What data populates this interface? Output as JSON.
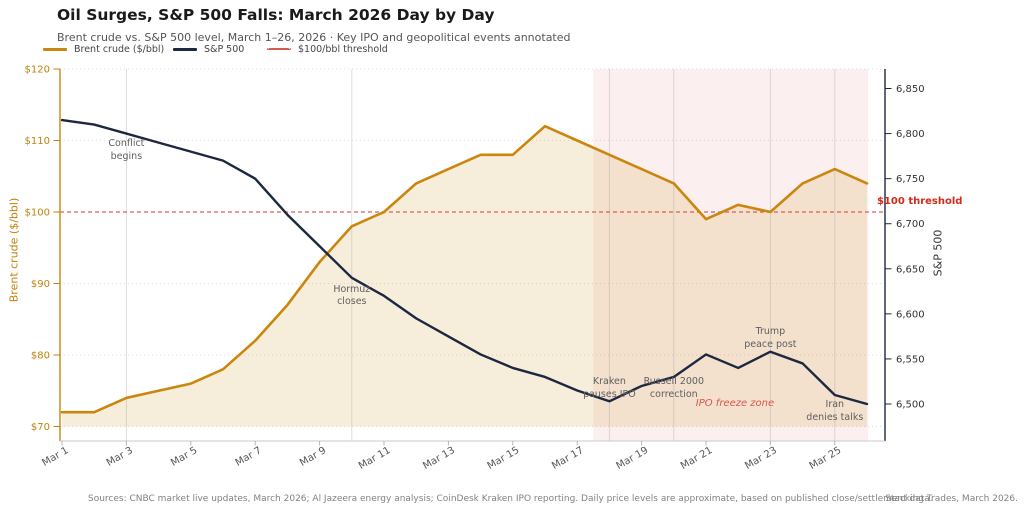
{
  "header": {
    "title": "Oil Surges, S&P 500 Falls: March 2026 Day by Day",
    "subtitle": "Brent crude vs. S&P 500 level, March 1–26, 2026 · Key IPO and geopolitical events annotated"
  },
  "legend": {
    "items": [
      {
        "label": "Brent crude ($/bbl)",
        "color": "#CB860E",
        "style": "solid"
      },
      {
        "label": "S&P 500",
        "color": "#1C2840",
        "style": "solid"
      },
      {
        "label": "$100/bbl threshold",
        "color": "#D65A50",
        "style": "dashed"
      }
    ]
  },
  "chart_data": {
    "type": "line",
    "title": "Oil Surges, S&P 500 Falls: March 2026 Day by Day",
    "categories": [
      "Mar 1",
      "Mar 2",
      "Mar 3",
      "Mar 4",
      "Mar 5",
      "Mar 6",
      "Mar 7",
      "Mar 8",
      "Mar 9",
      "Mar 10",
      "Mar 11",
      "Mar 12",
      "Mar 13",
      "Mar 14",
      "Mar 15",
      "Mar 16",
      "Mar 17",
      "Mar 18",
      "Mar 19",
      "Mar 20",
      "Mar 21",
      "Mar 22",
      "Mar 23",
      "Mar 24",
      "Mar 25",
      "Mar 26"
    ],
    "series": [
      {
        "name": "Brent crude ($/bbl)",
        "axis": "left",
        "color": "#CB860E",
        "values": [
          72,
          72,
          74,
          75,
          76,
          78,
          82,
          87,
          93,
          98,
          100,
          104,
          106,
          108,
          108,
          112,
          110,
          108,
          106,
          104,
          99,
          101,
          100,
          104,
          106,
          104
        ]
      },
      {
        "name": "S&P 500",
        "axis": "right",
        "color": "#1C2840",
        "values": [
          6815,
          6810,
          6800,
          6790,
          6780,
          6770,
          6750,
          6710,
          6675,
          6640,
          6620,
          6595,
          6575,
          6555,
          6540,
          6530,
          6515,
          6503,
          6520,
          6530,
          6555,
          6540,
          6558,
          6545,
          6510,
          6500
        ]
      }
    ],
    "left_axis": {
      "label": "Brent crude ($/bbl)",
      "color": "#BF820D",
      "tick_labels": [
        "$120",
        "$110",
        "$100",
        "$90",
        "$80",
        "$70"
      ],
      "tick_values": [
        120,
        110,
        100,
        90,
        80,
        70
      ],
      "range": [
        68,
        120
      ]
    },
    "right_axis": {
      "label": "S&P 500",
      "color": "#333333",
      "tick_labels": [
        "6,850",
        "6,800",
        "6,750",
        "6,700",
        "6,650",
        "6,600",
        "6,550",
        "6,500"
      ],
      "tick_values": [
        6850,
        6800,
        6750,
        6700,
        6650,
        6600,
        6550,
        6500
      ],
      "range": [
        6459,
        6872
      ]
    },
    "x_axis": {
      "tick_labels": [
        "Mar 1",
        "Mar 3",
        "Mar 5",
        "Mar 7",
        "Mar 9",
        "Mar 11",
        "Mar 13",
        "Mar 15",
        "Mar 17",
        "Mar 19",
        "Mar 21",
        "Mar 23",
        "Mar 25"
      ],
      "tick_days": [
        1,
        3,
        5,
        7,
        9,
        11,
        13,
        15,
        17,
        19,
        21,
        23,
        25
      ]
    },
    "threshold": {
      "value": 100,
      "label": "$100 threshold",
      "color": "#D65A50",
      "text_color": "#CF2B18"
    },
    "shaded_zone": {
      "label": "IPO freeze zone",
      "start_day": 17.5,
      "end_day": 26,
      "fill": "rgba(200,60,50,0.08)"
    },
    "event_lines": [
      {
        "day": 3,
        "event": "Conflict begins"
      },
      {
        "day": 10,
        "event": "Hormuz closes"
      },
      {
        "day": 18,
        "event": "Kraken pauses IPO"
      },
      {
        "day": 20,
        "event": "Russell 2000 correction"
      },
      {
        "day": 23,
        "event": "Trump peace post"
      },
      {
        "day": 25,
        "event": "Iran denies talks"
      }
    ],
    "grid": "horizontal-dotted",
    "legend_position": "top-left"
  },
  "annotations": [
    {
      "name": "annotation-conflict-begins",
      "day": 3,
      "value": 110.3,
      "text": "Conflict\nbegins",
      "style": "normal"
    },
    {
      "name": "annotation-hormuz-closes",
      "day": 10,
      "value": 90.0,
      "text": "Hormuz\ncloses",
      "style": "normal"
    },
    {
      "name": "annotation-kraken-pauses-ipo",
      "day": 18,
      "value": 77.0,
      "text": "Kraken\npauses IPO",
      "style": "normal"
    },
    {
      "name": "annotation-russell-2000-correction",
      "day": 20,
      "value": 77.0,
      "text": "Russell 2000\ncorrection",
      "style": "normal"
    },
    {
      "name": "annotation-ipo-freeze-zone",
      "day": 21.9,
      "value": 74.1,
      "text": "IPO freeze zone",
      "color": "#D85850",
      "style": "italic"
    },
    {
      "name": "annotation-trump-peace-post",
      "day": 23,
      "value": 84.0,
      "text": "Trump\npeace post",
      "style": "normal"
    },
    {
      "name": "annotation-iran-denies-talks",
      "day": 25,
      "value": 73.8,
      "text": "Iran\ndenies talks",
      "style": "normal"
    }
  ],
  "footer": {
    "sources": "Sources: CNBC market live updates, March 2026; Al Jazeera energy analysis; CoinDesk Kraken IPO reporting. Daily price levels are approximate, based on published close/settlement data.",
    "credit": "Stacking Trades, March 2026."
  }
}
